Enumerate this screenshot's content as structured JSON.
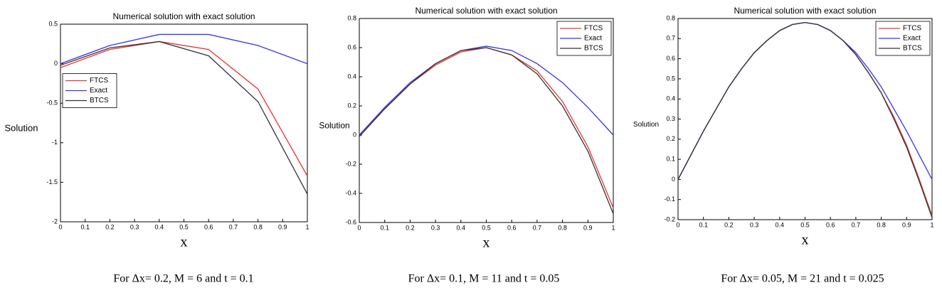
{
  "chart_data": [
    {
      "type": "line",
      "title": "Numerical solution with exact solution",
      "xlabel": "x",
      "ylabel": "Solution",
      "caption": "For  Δx= 0.2, M = 6 and t = 0.1",
      "x": [
        0,
        0.2,
        0.4,
        0.6,
        0.8,
        1
      ],
      "series": [
        {
          "name": "FTCS",
          "color": "#e83535",
          "values": [
            -0.05,
            0.18,
            0.28,
            0.18,
            -0.32,
            -1.42
          ]
        },
        {
          "name": "Exact",
          "color": "#3535f0",
          "values": [
            0.0,
            0.23,
            0.37,
            0.37,
            0.23,
            0.0
          ]
        },
        {
          "name": "BTCS",
          "color": "#333333",
          "values": [
            -0.02,
            0.2,
            0.28,
            0.1,
            -0.48,
            -1.65
          ]
        }
      ],
      "xlim": [
        0,
        1
      ],
      "xticks": [
        0,
        0.1,
        0.2,
        0.3,
        0.4,
        0.5,
        0.6,
        0.7,
        0.8,
        0.9,
        1
      ],
      "ylim": [
        -2,
        0.5
      ],
      "yticks": [
        -2,
        -1.5,
        -1,
        -0.5,
        0,
        0.5
      ],
      "legend": "center left"
    },
    {
      "type": "line",
      "title": "Numerical solution with exact solution",
      "xlabel": "x",
      "ylabel": "Solution",
      "caption": "For  Δx= 0.1, M = 11 and t = 0.05",
      "x": [
        0,
        0.1,
        0.2,
        0.3,
        0.4,
        0.5,
        0.6,
        0.7,
        0.8,
        0.9,
        1
      ],
      "series": [
        {
          "name": "FTCS",
          "color": "#e83535",
          "values": [
            0,
            0.18,
            0.35,
            0.48,
            0.57,
            0.6,
            0.55,
            0.44,
            0.23,
            -0.08,
            -0.5
          ]
        },
        {
          "name": "Exact",
          "color": "#3535f0",
          "values": [
            0,
            0.19,
            0.36,
            0.49,
            0.58,
            0.61,
            0.58,
            0.49,
            0.36,
            0.19,
            0
          ]
        },
        {
          "name": "BTCS",
          "color": "#333333",
          "values": [
            -0.01,
            0.18,
            0.35,
            0.49,
            0.58,
            0.6,
            0.55,
            0.42,
            0.2,
            -0.11,
            -0.54
          ]
        }
      ],
      "xlim": [
        0,
        1
      ],
      "xticks": [
        0,
        0.1,
        0.2,
        0.3,
        0.4,
        0.5,
        0.6,
        0.7,
        0.8,
        0.9,
        1
      ],
      "ylim": [
        -0.6,
        0.8
      ],
      "yticks": [
        -0.6,
        -0.4,
        -0.2,
        0,
        0.2,
        0.4,
        0.6,
        0.8
      ],
      "legend": "upper right"
    },
    {
      "type": "line",
      "title": "Numerical solution with exact solution",
      "xlabel": "x",
      "ylabel": "Solution",
      "caption": "For  Δx= 0.05, M = 21 and t = 0.025",
      "x": [
        0,
        0.05,
        0.1,
        0.15,
        0.2,
        0.25,
        0.3,
        0.35,
        0.4,
        0.45,
        0.5,
        0.55,
        0.6,
        0.65,
        0.7,
        0.75,
        0.8,
        0.85,
        0.9,
        0.95,
        1
      ],
      "series": [
        {
          "name": "FTCS",
          "color": "#e83535",
          "values": [
            0,
            0.12,
            0.24,
            0.35,
            0.46,
            0.55,
            0.63,
            0.69,
            0.74,
            0.77,
            0.78,
            0.77,
            0.74,
            0.69,
            0.62,
            0.53,
            0.43,
            0.31,
            0.17,
            0.0,
            -0.18
          ]
        },
        {
          "name": "Exact",
          "color": "#3535f0",
          "values": [
            0,
            0.12,
            0.24,
            0.35,
            0.46,
            0.55,
            0.63,
            0.69,
            0.74,
            0.77,
            0.78,
            0.77,
            0.74,
            0.69,
            0.63,
            0.55,
            0.46,
            0.35,
            0.24,
            0.12,
            0
          ]
        },
        {
          "name": "BTCS",
          "color": "#333333",
          "values": [
            0,
            0.12,
            0.24,
            0.35,
            0.46,
            0.55,
            0.63,
            0.69,
            0.74,
            0.77,
            0.78,
            0.77,
            0.74,
            0.69,
            0.62,
            0.53,
            0.43,
            0.3,
            0.16,
            -0.01,
            -0.19
          ]
        }
      ],
      "xlim": [
        0,
        1
      ],
      "xticks": [
        0,
        0.1,
        0.2,
        0.3,
        0.4,
        0.5,
        0.6,
        0.7,
        0.8,
        0.9,
        1
      ],
      "ylim": [
        -0.2,
        0.8
      ],
      "yticks": [
        -0.2,
        -0.1,
        0,
        0.1,
        0.2,
        0.3,
        0.4,
        0.5,
        0.6,
        0.7,
        0.8
      ],
      "legend": "upper right"
    }
  ]
}
